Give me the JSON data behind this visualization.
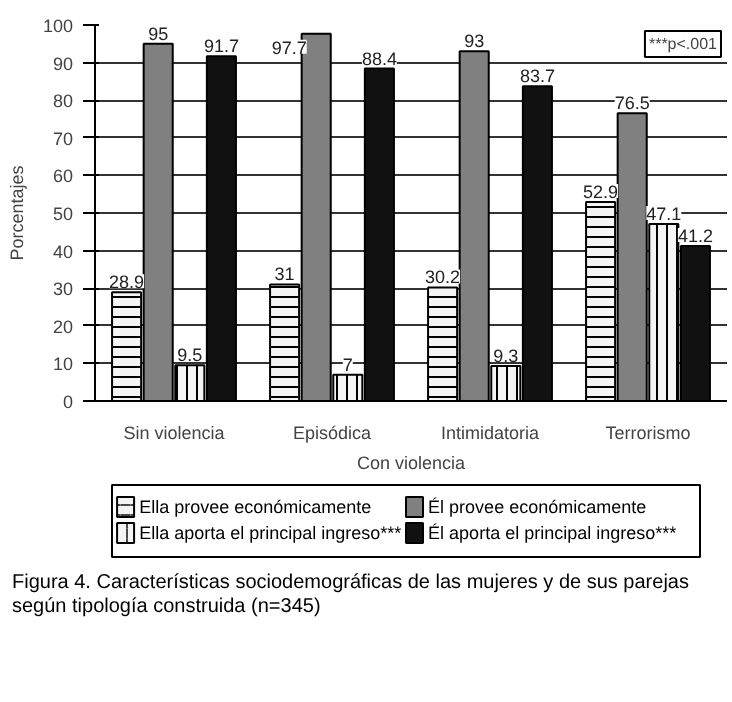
{
  "chart_data": {
    "type": "bar",
    "ylabel": "Porcentajes",
    "categories": [
      "Sin violencia",
      "Episódica",
      "Intimidatoria",
      "Terrorismo"
    ],
    "series": [
      {
        "name": "Ella provee económicamente",
        "color": "#f4f4f4",
        "values": [
          28.9,
          31,
          30.2,
          52.9
        ]
      },
      {
        "name": "Él provee económicamente",
        "color": "#808080",
        "values": [
          95,
          97.7,
          93,
          76.5
        ]
      },
      {
        "name": "Ella aporta el principal ingreso***",
        "color": "#f4f4f4",
        "values": [
          9.5,
          7,
          9.3,
          47.1
        ]
      },
      {
        "name": "Él aporta el principal ingreso***",
        "color": "#111111",
        "values": [
          91.7,
          88.4,
          83.7,
          41.2
        ]
      }
    ],
    "ylim": [
      0,
      100
    ],
    "yticks": [
      0,
      10,
      20,
      30,
      40,
      50,
      60,
      70,
      80,
      90,
      100
    ],
    "grid": "y",
    "legend": "bottom",
    "data_labels": true,
    "annotations": [
      "***p<.001",
      "Con violencia",
      "Figura 4. Características sociodemográficas de las mujeres y de sus parejas según tipología construida (n=345)"
    ]
  }
}
